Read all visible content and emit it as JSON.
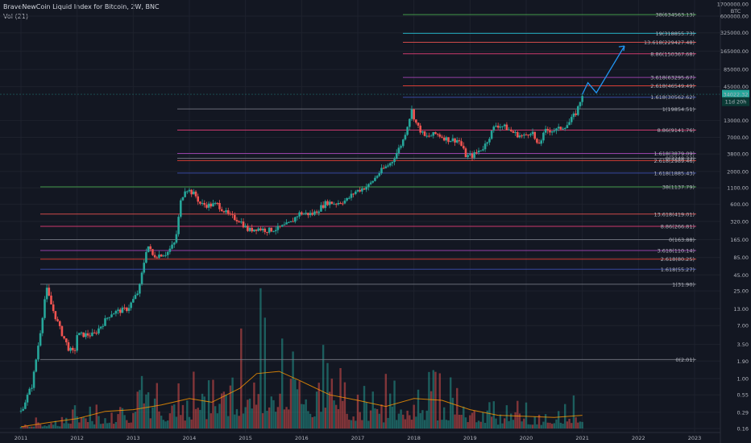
{
  "header": {
    "title": "BraveNewCoin Liquid Index for Bitcoin, 2W, BNC",
    "volume_label": "Vol (21)",
    "currency": "BTC"
  },
  "chart_data": {
    "type": "candlestick",
    "scale": "log",
    "ylim": [
      0.14,
      1700000
    ],
    "x_ticks": [
      "2011",
      "2012",
      "2013",
      "2014",
      "2015",
      "2016",
      "2017",
      "2018",
      "2019",
      "2020",
      "2021",
      "2022",
      "2023"
    ],
    "y_ticks": [
      {
        "label": "1700000.00",
        "value": 1700000
      },
      {
        "label": "600000.00",
        "value": 600000
      },
      {
        "label": "325000.00",
        "value": 325000
      },
      {
        "label": "165000.00",
        "value": 165000
      },
      {
        "label": "85000.00",
        "value": 85000
      },
      {
        "label": "45000.00",
        "value": 45000
      },
      {
        "label": "13000.00",
        "value": 13000
      },
      {
        "label": "7000.00",
        "value": 7000
      },
      {
        "label": "3800.00",
        "value": 3800
      },
      {
        "label": "2000.00",
        "value": 2000
      },
      {
        "label": "1100.00",
        "value": 1100
      },
      {
        "label": "600.00",
        "value": 600
      },
      {
        "label": "320.00",
        "value": 320
      },
      {
        "label": "165.00",
        "value": 165
      },
      {
        "label": "85.00",
        "value": 85
      },
      {
        "label": "45.00",
        "value": 45
      },
      {
        "label": "25.00",
        "value": 25
      },
      {
        "label": "13.00",
        "value": 13
      },
      {
        "label": "7.00",
        "value": 7
      },
      {
        "label": "3.50",
        "value": 3.5
      },
      {
        "label": "1.90",
        "value": 1.9
      },
      {
        "label": "1.00",
        "value": 1
      },
      {
        "label": "0.55",
        "value": 0.55
      },
      {
        "label": "0.29",
        "value": 0.29
      },
      {
        "label": "0.16",
        "value": 0.16
      }
    ],
    "price_path": [
      [
        2011.0,
        0.3
      ],
      [
        2011.2,
        0.8
      ],
      [
        2011.35,
        6
      ],
      [
        2011.45,
        28
      ],
      [
        2011.55,
        14
      ],
      [
        2011.7,
        6
      ],
      [
        2011.85,
        3
      ],
      [
        2011.95,
        2.5
      ],
      [
        2012.0,
        5
      ],
      [
        2012.3,
        5
      ],
      [
        2012.6,
        11
      ],
      [
        2012.9,
        13
      ],
      [
        2013.1,
        25
      ],
      [
        2013.25,
        140
      ],
      [
        2013.35,
        90
      ],
      [
        2013.6,
        100
      ],
      [
        2013.75,
        150
      ],
      [
        2013.85,
        700
      ],
      [
        2013.93,
        1100
      ],
      [
        2014.1,
        850
      ],
      [
        2014.2,
        600
      ],
      [
        2014.35,
        580
      ],
      [
        2014.5,
        600
      ],
      [
        2014.7,
        400
      ],
      [
        2014.9,
        330
      ],
      [
        2015.05,
        230
      ],
      [
        2015.2,
        250
      ],
      [
        2015.4,
        230
      ],
      [
        2015.6,
        250
      ],
      [
        2015.8,
        300
      ],
      [
        2015.95,
        430
      ],
      [
        2016.2,
        420
      ],
      [
        2016.45,
        650
      ],
      [
        2016.6,
        620
      ],
      [
        2016.8,
        700
      ],
      [
        2016.95,
        950
      ],
      [
        2017.2,
        1200
      ],
      [
        2017.4,
        2000
      ],
      [
        2017.6,
        2800
      ],
      [
        2017.8,
        6000
      ],
      [
        2017.96,
        19000
      ],
      [
        2018.05,
        11000
      ],
      [
        2018.2,
        7000
      ],
      [
        2018.4,
        8000
      ],
      [
        2018.6,
        6500
      ],
      [
        2018.8,
        6300
      ],
      [
        2018.93,
        3500
      ],
      [
        2019.05,
        3600
      ],
      [
        2019.25,
        5000
      ],
      [
        2019.45,
        11000
      ],
      [
        2019.6,
        10500
      ],
      [
        2019.8,
        8000
      ],
      [
        2019.95,
        7200
      ],
      [
        2020.1,
        9000
      ],
      [
        2020.2,
        5000
      ],
      [
        2020.35,
        9000
      ],
      [
        2020.55,
        9200
      ],
      [
        2020.75,
        11500
      ],
      [
        2020.9,
        18000
      ],
      [
        2021.0,
        34000
      ]
    ],
    "projection_path": [
      [
        2021.0,
        34022.32
      ],
      [
        2021.1,
        52000
      ],
      [
        2021.25,
        36000
      ],
      [
        2021.75,
        200000
      ]
    ],
    "volume_ma_path": [
      [
        2011.0,
        0.17
      ],
      [
        2011.5,
        0.2
      ],
      [
        2012.0,
        0.23
      ],
      [
        2012.5,
        0.3
      ],
      [
        2013.0,
        0.32
      ],
      [
        2013.5,
        0.38
      ],
      [
        2014.0,
        0.48
      ],
      [
        2014.4,
        0.42
      ],
      [
        2014.9,
        0.7
      ],
      [
        2015.2,
        1.2
      ],
      [
        2015.6,
        1.3
      ],
      [
        2016.0,
        0.9
      ],
      [
        2016.5,
        0.55
      ],
      [
        2017.0,
        0.45
      ],
      [
        2017.5,
        0.36
      ],
      [
        2018.0,
        0.48
      ],
      [
        2018.5,
        0.45
      ],
      [
        2019.0,
        0.32
      ],
      [
        2019.5,
        0.26
      ],
      [
        2020.0,
        0.25
      ],
      [
        2020.5,
        0.24
      ],
      [
        2021.0,
        0.26
      ]
    ],
    "price_tags": [
      {
        "label": "34022.32",
        "value": 34022.32,
        "color": "#26a69a"
      },
      {
        "label": "11d 20h",
        "value": 26000,
        "color": "#26a69a"
      }
    ],
    "fib_levels": [
      {
        "label": "38(634563.13)",
        "value": 634563.13,
        "color": "#4caf50"
      },
      {
        "label": "19(318855.73)",
        "value": 318855.73,
        "color": "#26c6da"
      },
      {
        "label": "13.618(229427.48)",
        "value": 229427.48,
        "color": "#ef5350"
      },
      {
        "label": "8.86(150367.68)",
        "value": 150367.68,
        "color": "#ec407a"
      },
      {
        "label": "3.618(63295.67)",
        "value": 63295.67,
        "color": "#ab47bc"
      },
      {
        "label": "2.618(46549.49)",
        "value": 46549.49,
        "color": "#f44336"
      },
      {
        "label": "1.618(30562.62)",
        "value": 30562.62,
        "color": "#3f51b5"
      },
      {
        "label": "1(19854.51)",
        "value": 19854.51,
        "color": "#787b86"
      },
      {
        "label": "8.86(9141.76)",
        "value": 9141.76,
        "color": "#ec407a"
      },
      {
        "label": "1.618(3879.09)",
        "value": 3879.09,
        "color": "#ab47bc"
      },
      {
        "label": "0(3248.33)",
        "value": 3248.33,
        "color": "#787b86"
      },
      {
        "label": "2.618(2989.46)",
        "value": 2989.46,
        "color": "#f44336"
      },
      {
        "label": "1.618(1885.43)",
        "value": 1885.43,
        "color": "#3f51b5"
      },
      {
        "label": "38(1137.79)",
        "value": 1137.79,
        "color": "#4caf50"
      },
      {
        "label": "13.618(419.01)",
        "value": 419.01,
        "color": "#ef5350"
      },
      {
        "label": "8.86(266.81)",
        "value": 266.81,
        "color": "#ec407a"
      },
      {
        "label": "0(163.88)",
        "value": 163.88,
        "color": "#787b86"
      },
      {
        "label": "3.618(110.14)",
        "value": 110.14,
        "color": "#ab47bc"
      },
      {
        "label": "2.618(80.25)",
        "value": 80.25,
        "color": "#f44336"
      },
      {
        "label": "1.618(55.27)",
        "value": 55.27,
        "color": "#3f51b5"
      },
      {
        "label": "1(31.90)",
        "value": 31.9,
        "color": "#787b86"
      },
      {
        "label": "0(2.01)",
        "value": 2.01,
        "color": "#787b86"
      }
    ]
  }
}
